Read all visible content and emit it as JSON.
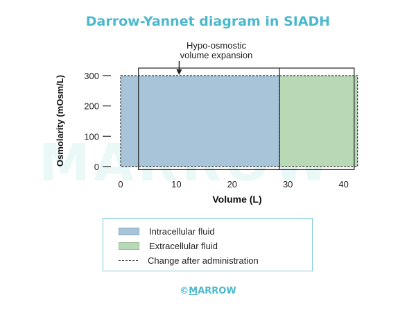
{
  "title": "Darrow-Yannet diagram in SIADH",
  "watermark": "MARROW",
  "annotation": {
    "line1": "Hypo-osmostic",
    "line2": "volume expansion"
  },
  "footer": {
    "copyright": "©",
    "m": "M",
    "rest": "ARROW"
  },
  "colors": {
    "icf": "#a8c4d8",
    "ecf": "#b9d8b5",
    "accent": "#4bb8cc",
    "border": "#7fcad8"
  },
  "chart_data": {
    "type": "diagram",
    "xlabel": "Volume (L)",
    "ylabel": "Osmolarity (mOsm/L)",
    "x_ticks": [
      0,
      10,
      20,
      30,
      40
    ],
    "y_ticks": [
      0,
      100,
      200,
      300
    ],
    "xlim": [
      0,
      43
    ],
    "ylim": [
      0,
      300
    ],
    "regions": [
      {
        "name": "Intracellular fluid",
        "x": [
          0,
          28.5
        ],
        "y": [
          0,
          300
        ]
      },
      {
        "name": "Extracellular fluid",
        "x": [
          28.5,
          42.5
        ],
        "y": [
          0,
          300
        ]
      }
    ],
    "original_box": {
      "x": [
        3.2,
        41.9
      ],
      "y": [
        -10,
        325
      ],
      "dividers": [
        28.5
      ]
    },
    "annotation_arrow_x": 10.5
  },
  "legend": {
    "items": [
      {
        "label": "Intracellular fluid"
      },
      {
        "label": "Extracellular fluid"
      },
      {
        "label": "Change after administration"
      }
    ]
  }
}
